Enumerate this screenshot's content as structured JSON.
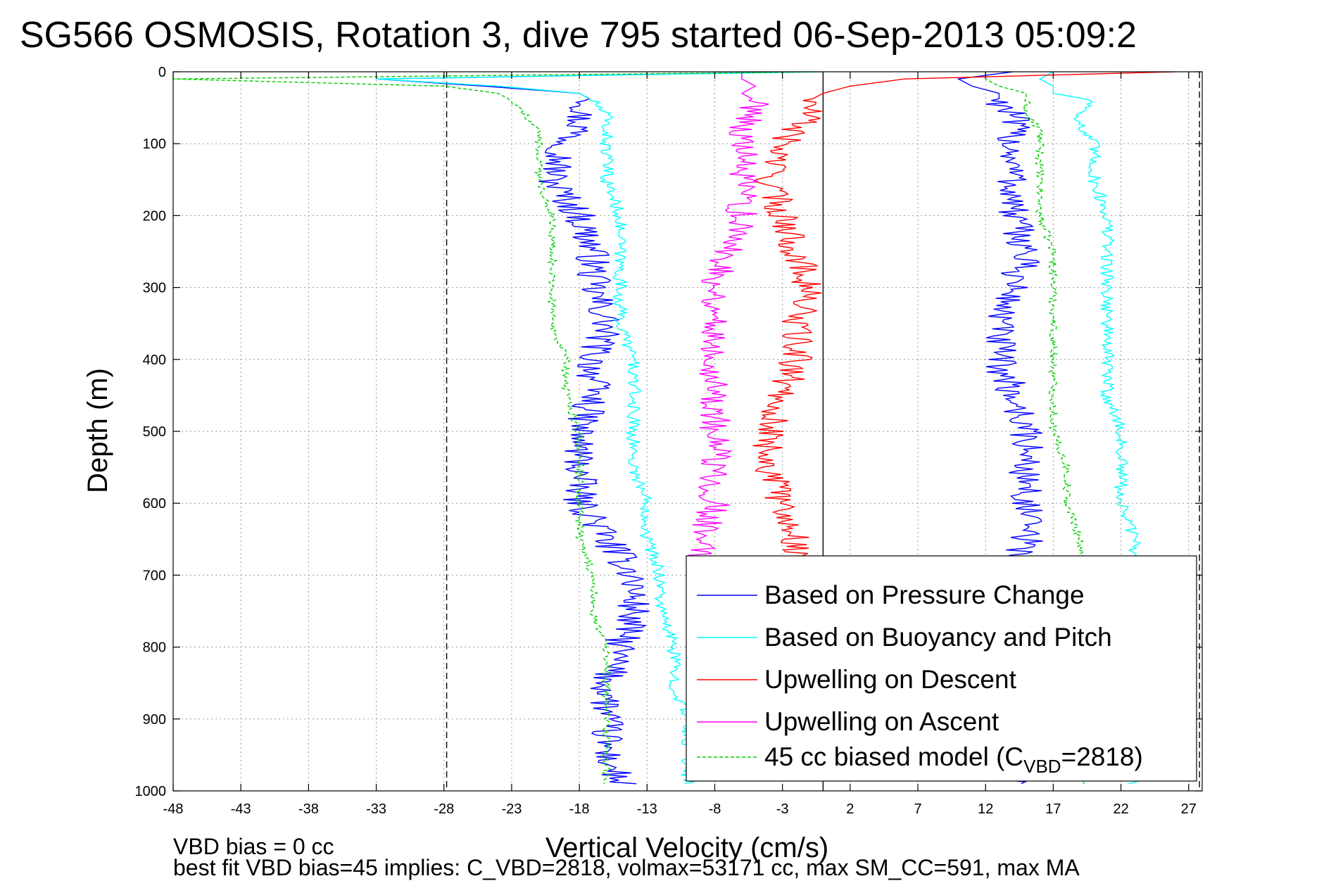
{
  "chart_data": {
    "type": "line",
    "title": "SG566 OSMOSIS, Rotation 3, dive 795 started 06-Sep-2013 05:09:2",
    "xlabel": "Vertical Velocity (cm/s)",
    "ylabel": "Depth (m)",
    "xlim": [
      -48,
      28
    ],
    "ylim": [
      1000,
      0
    ],
    "y_reversed": true,
    "x_ticks": [
      -48,
      -43,
      -38,
      -33,
      -28,
      -23,
      -18,
      -13,
      -8,
      -3,
      2,
      7,
      12,
      17,
      22,
      27
    ],
    "y_ticks": [
      0,
      100,
      200,
      300,
      400,
      500,
      600,
      700,
      800,
      900,
      1000
    ],
    "grid": true,
    "legend_position": "bottom-right",
    "reference_lines": [
      {
        "x": -27.8,
        "style": "dashed",
        "color": "#000000"
      },
      {
        "x": 0,
        "style": "solid",
        "color": "#000000"
      },
      {
        "x": 27.8,
        "style": "dashed",
        "color": "#000000"
      }
    ],
    "series": [
      {
        "name": "Based on Pressure Change",
        "color": "#0000ff",
        "style": "solid",
        "depth": [
          0,
          10,
          20,
          30,
          40,
          60,
          80,
          100,
          150,
          200,
          250,
          300,
          350,
          400,
          450,
          500,
          550,
          600,
          620,
          650,
          700,
          750,
          800,
          850,
          900,
          950,
          990
        ],
        "descent": [
          -1,
          -33,
          -25,
          -18,
          -17,
          -18,
          -18,
          -19,
          -20,
          -18,
          -17,
          -17,
          -16,
          -17,
          -17,
          -18,
          -18,
          -18,
          -17,
          -16,
          -14,
          -14,
          -15,
          -16,
          -16,
          -16,
          -15
        ],
        "ascent": [
          14,
          10,
          11,
          13,
          13,
          14,
          14,
          14,
          14,
          14,
          15,
          14,
          13,
          13,
          14,
          15,
          15,
          15,
          15,
          15,
          14,
          14,
          14,
          14,
          14,
          14,
          14
        ]
      },
      {
        "name": "Based on Buoyancy and Pitch",
        "color": "#00ffff",
        "style": "solid",
        "depth": [
          0,
          10,
          20,
          30,
          40,
          60,
          80,
          100,
          150,
          200,
          250,
          300,
          350,
          400,
          450,
          500,
          550,
          600,
          650,
          700,
          750,
          800,
          850,
          900,
          950,
          990
        ],
        "descent": [
          0,
          -33,
          -24,
          -18,
          -17,
          -16,
          -16,
          -16,
          -16,
          -15,
          -15,
          -15,
          -15,
          -14,
          -14,
          -14,
          -14,
          -13,
          -13,
          -12,
          -12,
          -11,
          -11,
          -10,
          -10,
          -10
        ],
        "ascent": [
          17,
          16,
          17,
          17,
          20,
          19,
          19,
          20,
          20,
          21,
          21,
          21,
          21,
          21,
          21,
          22,
          22,
          22,
          23,
          23,
          23,
          23,
          23,
          23,
          23,
          23
        ]
      },
      {
        "name": "Upwelling on Descent",
        "color": "#ff0000",
        "style": "solid",
        "depth": [
          0,
          10,
          20,
          30,
          40,
          60,
          80,
          100,
          150,
          200,
          250,
          300,
          350,
          400,
          450,
          500,
          550,
          600,
          650,
          680
        ],
        "values": [
          26,
          6,
          2,
          0,
          -1,
          -1,
          -2,
          -3,
          -4,
          -3,
          -2,
          -1,
          -2,
          -2,
          -3,
          -4,
          -4,
          -3,
          -2,
          -2
        ]
      },
      {
        "name": "Upwelling on Ascent",
        "color": "#ff00ff",
        "style": "solid",
        "depth": [
          0,
          10,
          20,
          30,
          40,
          60,
          80,
          100,
          150,
          200,
          250,
          300,
          350,
          400,
          450,
          500,
          550,
          600,
          650,
          680
        ],
        "values": [
          -6,
          -6,
          -5,
          -6,
          -5,
          -5,
          -6,
          -6,
          -6,
          -6,
          -7,
          -8,
          -8,
          -8,
          -8,
          -8,
          -8,
          -8,
          -9,
          -9
        ]
      },
      {
        "name": "45 cc biased model (C",
        "name_subscript": "VBD",
        "name_suffix": "=2818)",
        "color": "#00cc00",
        "style": "dashed",
        "depth": [
          0,
          10,
          20,
          30,
          40,
          60,
          80,
          100,
          150,
          200,
          250,
          300,
          350,
          400,
          450,
          500,
          550,
          600,
          650,
          700,
          750,
          800,
          850,
          900,
          950,
          990
        ],
        "descent": [
          0,
          -48,
          -28,
          -24,
          -23,
          -22,
          -21,
          -21,
          -21,
          -20,
          -20,
          -20,
          -20,
          -19,
          -19,
          -18,
          -18,
          -18,
          -18,
          -17,
          -17,
          -16,
          -16,
          -16,
          -16,
          -16
        ],
        "ascent": [
          12,
          12,
          13,
          15,
          15,
          15,
          16,
          16,
          16,
          16,
          17,
          17,
          17,
          17,
          17,
          17,
          18,
          18,
          19,
          19,
          19,
          19,
          19,
          19,
          19,
          19
        ]
      }
    ],
    "notes": [
      "VBD bias = 0 cc",
      "best fit VBD bias=45 implies: C_VBD=2818, volmax=53171 cc, max SM_CC=591, max MA"
    ]
  }
}
